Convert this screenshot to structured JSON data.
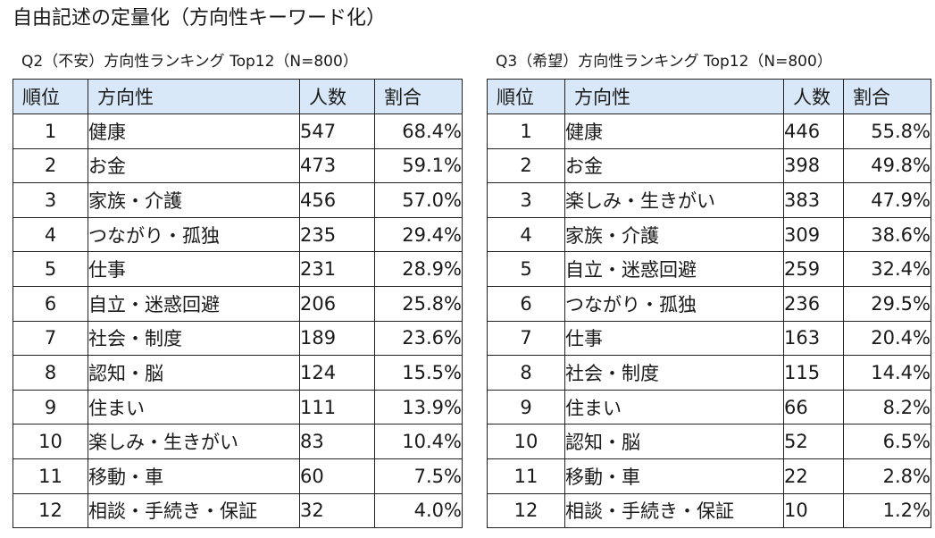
{
  "title": "自由記述の定量化（方向性キーワード化）",
  "headers": {
    "rank": "順位",
    "direction": "方向性",
    "count": "人数",
    "ratio": "割合"
  },
  "q2": {
    "caption": "Q2（不安）方向性ランキング Top12（N=800）",
    "rows": [
      {
        "rank": "1",
        "direction": "健康",
        "count": "547",
        "ratio": "68.4%"
      },
      {
        "rank": "2",
        "direction": "お金",
        "count": "473",
        "ratio": "59.1%"
      },
      {
        "rank": "3",
        "direction": "家族・介護",
        "count": "456",
        "ratio": "57.0%"
      },
      {
        "rank": "4",
        "direction": "つながり・孤独",
        "count": "235",
        "ratio": "29.4%"
      },
      {
        "rank": "5",
        "direction": "仕事",
        "count": "231",
        "ratio": "28.9%"
      },
      {
        "rank": "6",
        "direction": "自立・迷惑回避",
        "count": "206",
        "ratio": "25.8%"
      },
      {
        "rank": "7",
        "direction": "社会・制度",
        "count": "189",
        "ratio": "23.6%"
      },
      {
        "rank": "8",
        "direction": "認知・脳",
        "count": "124",
        "ratio": "15.5%"
      },
      {
        "rank": "9",
        "direction": "住まい",
        "count": "111",
        "ratio": "13.9%"
      },
      {
        "rank": "10",
        "direction": "楽しみ・生きがい",
        "count": "83",
        "ratio": "10.4%"
      },
      {
        "rank": "11",
        "direction": "移動・車",
        "count": "60",
        "ratio": "7.5%"
      },
      {
        "rank": "12",
        "direction": "相談・手続き・保証",
        "count": "32",
        "ratio": "4.0%"
      }
    ]
  },
  "q3": {
    "caption": "Q3（希望）方向性ランキング Top12（N=800）",
    "rows": [
      {
        "rank": "1",
        "direction": "健康",
        "count": "446",
        "ratio": "55.8%"
      },
      {
        "rank": "2",
        "direction": "お金",
        "count": "398",
        "ratio": "49.8%"
      },
      {
        "rank": "3",
        "direction": "楽しみ・生きがい",
        "count": "383",
        "ratio": "47.9%"
      },
      {
        "rank": "4",
        "direction": "家族・介護",
        "count": "309",
        "ratio": "38.6%"
      },
      {
        "rank": "5",
        "direction": "自立・迷惑回避",
        "count": "259",
        "ratio": "32.4%"
      },
      {
        "rank": "6",
        "direction": "つながり・孤独",
        "count": "236",
        "ratio": "29.5%"
      },
      {
        "rank": "7",
        "direction": "仕事",
        "count": "163",
        "ratio": "20.4%"
      },
      {
        "rank": "8",
        "direction": "社会・制度",
        "count": "115",
        "ratio": "14.4%"
      },
      {
        "rank": "9",
        "direction": "住まい",
        "count": "66",
        "ratio": "8.2%"
      },
      {
        "rank": "10",
        "direction": "認知・脳",
        "count": "52",
        "ratio": "6.5%"
      },
      {
        "rank": "11",
        "direction": "移動・車",
        "count": "22",
        "ratio": "2.8%"
      },
      {
        "rank": "12",
        "direction": "相談・手続き・保証",
        "count": "10",
        "ratio": "1.2%"
      }
    ]
  }
}
